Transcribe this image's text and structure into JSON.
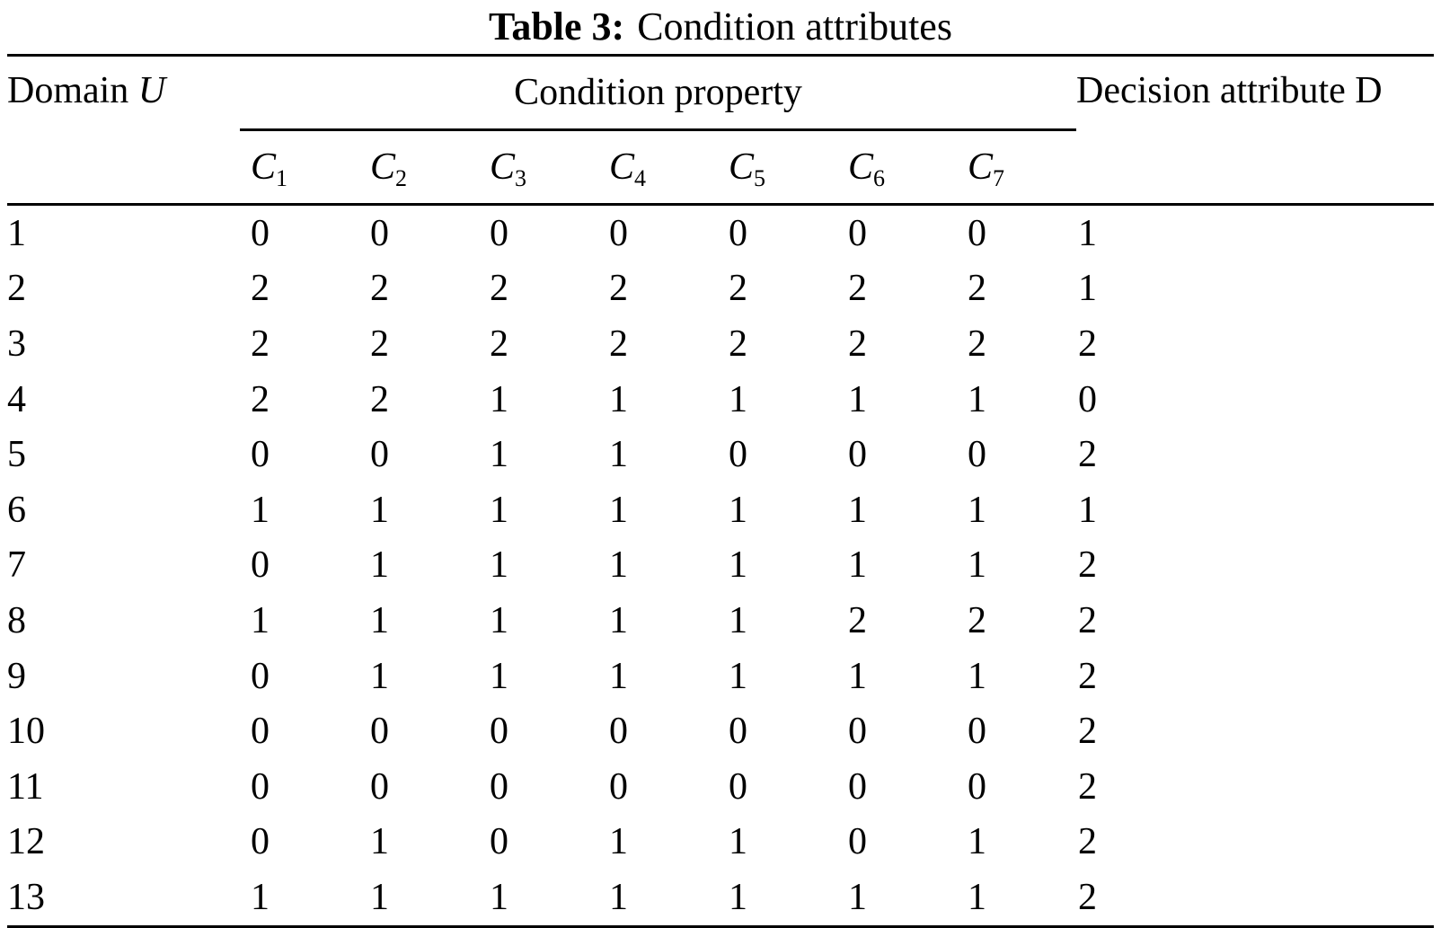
{
  "caption": {
    "prefix": "Table 3:",
    "title": "Condition attributes"
  },
  "table": {
    "domain_header": {
      "text": "Domain",
      "symbol": "U"
    },
    "condition_header": "Condition property",
    "decision_header": "Decision attribute D",
    "condition_columns": [
      {
        "base": "C",
        "sub": "1"
      },
      {
        "base": "C",
        "sub": "2"
      },
      {
        "base": "C",
        "sub": "3"
      },
      {
        "base": "C",
        "sub": "4"
      },
      {
        "base": "C",
        "sub": "5"
      },
      {
        "base": "C",
        "sub": "6"
      },
      {
        "base": "C",
        "sub": "7"
      }
    ],
    "rows": [
      {
        "domain": "1",
        "conditions": [
          "0",
          "0",
          "0",
          "0",
          "0",
          "0",
          "0"
        ],
        "decision": "1"
      },
      {
        "domain": "2",
        "conditions": [
          "2",
          "2",
          "2",
          "2",
          "2",
          "2",
          "2"
        ],
        "decision": "1"
      },
      {
        "domain": "3",
        "conditions": [
          "2",
          "2",
          "2",
          "2",
          "2",
          "2",
          "2"
        ],
        "decision": "2"
      },
      {
        "domain": "4",
        "conditions": [
          "2",
          "2",
          "1",
          "1",
          "1",
          "1",
          "1"
        ],
        "decision": "0"
      },
      {
        "domain": "5",
        "conditions": [
          "0",
          "0",
          "1",
          "1",
          "0",
          "0",
          "0"
        ],
        "decision": "2"
      },
      {
        "domain": "6",
        "conditions": [
          "1",
          "1",
          "1",
          "1",
          "1",
          "1",
          "1"
        ],
        "decision": "1"
      },
      {
        "domain": "7",
        "conditions": [
          "0",
          "1",
          "1",
          "1",
          "1",
          "1",
          "1"
        ],
        "decision": "2"
      },
      {
        "domain": "8",
        "conditions": [
          "1",
          "1",
          "1",
          "1",
          "1",
          "2",
          "2"
        ],
        "decision": "2"
      },
      {
        "domain": "9",
        "conditions": [
          "0",
          "1",
          "1",
          "1",
          "1",
          "1",
          "1"
        ],
        "decision": "2"
      },
      {
        "domain": "10",
        "conditions": [
          "0",
          "0",
          "0",
          "0",
          "0",
          "0",
          "0"
        ],
        "decision": "2"
      },
      {
        "domain": "11",
        "conditions": [
          "0",
          "0",
          "0",
          "0",
          "0",
          "0",
          "0"
        ],
        "decision": "2"
      },
      {
        "domain": "12",
        "conditions": [
          "0",
          "1",
          "0",
          "1",
          "1",
          "0",
          "1"
        ],
        "decision": "2"
      },
      {
        "domain": "13",
        "conditions": [
          "1",
          "1",
          "1",
          "1",
          "1",
          "1",
          "1"
        ],
        "decision": "2"
      }
    ]
  }
}
